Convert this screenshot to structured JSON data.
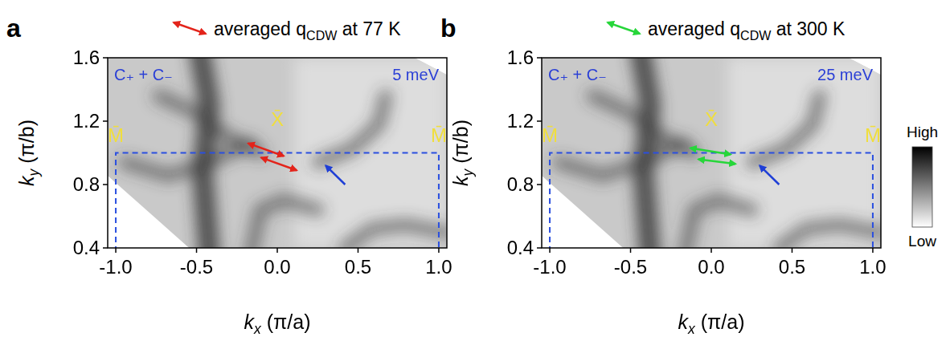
{
  "chart_data": [
    {
      "type": "image",
      "panel": "a",
      "legend": {
        "prefix": "averaged q",
        "subscript": "CDW",
        "suffix": " at 77 K",
        "color": "#e3241b"
      },
      "label_left": "C₊ + C₋",
      "label_right": "5 meV",
      "xlabel": {
        "symbol": "k",
        "subscript": "x",
        "unit": " (π/a)"
      },
      "ylabel": {
        "symbol": "k",
        "subscript": "y",
        "unit": " (π/b)"
      },
      "xlim": [
        -1.05,
        1.05
      ],
      "ylim": [
        0.4,
        1.6
      ],
      "xticks": [
        {
          "value": -1.0,
          "label": "-1.0"
        },
        -0.5,
        {
          "value": 0.0,
          "label": "0.0"
        },
        0.5,
        {
          "value": 1.0,
          "label": "1.0"
        }
      ],
      "yticks": [
        0.4,
        0.8,
        1.2,
        1.6
      ],
      "points": [
        {
          "label": "M̄",
          "x": -1.0,
          "y": 1.07
        },
        {
          "label": "X̄",
          "x": 0.0,
          "y": 1.17
        },
        {
          "label": "M̄",
          "x": 1.0,
          "y": 1.07
        }
      ],
      "zone": {
        "x": [
          -1.0,
          1.0
        ],
        "y_top": 1.0
      },
      "q_arrows": [
        {
          "from": [
            -0.18,
            1.06
          ],
          "to": [
            0.04,
            0.98
          ]
        },
        {
          "from": [
            -0.1,
            0.97
          ],
          "to": [
            0.12,
            0.89
          ]
        }
      ],
      "pointer": {
        "from": [
          0.42,
          0.8
        ],
        "to": [
          0.3,
          0.92
        ],
        "color": "#1f3fd6"
      }
    },
    {
      "type": "image",
      "panel": "b",
      "legend": {
        "prefix": "averaged q",
        "subscript": "CDW",
        "suffix": " at 300 K",
        "color": "#27d63a"
      },
      "label_left": "C₊ + C₋",
      "label_right": "25 meV",
      "xlabel": {
        "symbol": "k",
        "subscript": "x",
        "unit": " (π/a)"
      },
      "ylabel": {
        "symbol": "k",
        "subscript": "y",
        "unit": " (π/b)"
      },
      "xlim": [
        -1.05,
        1.05
      ],
      "ylim": [
        0.4,
        1.6
      ],
      "xticks": [
        {
          "value": -1.0,
          "label": "-1.0"
        },
        -0.5,
        {
          "value": 0.0,
          "label": "0.0"
        },
        0.5,
        {
          "value": 1.0,
          "label": "1.0"
        }
      ],
      "yticks": [
        0.4,
        0.8,
        1.2,
        1.6
      ],
      "points": [
        {
          "label": "M̄",
          "x": -1.0,
          "y": 1.07
        },
        {
          "label": "X̄",
          "x": 0.0,
          "y": 1.17
        },
        {
          "label": "M̄",
          "x": 1.0,
          "y": 1.07
        }
      ],
      "zone": {
        "x": [
          -1.0,
          1.0
        ],
        "y_top": 1.0
      },
      "q_arrows": [
        {
          "from": [
            -0.13,
            1.03
          ],
          "to": [
            0.12,
            0.99
          ]
        },
        {
          "from": [
            -0.08,
            0.96
          ],
          "to": [
            0.15,
            0.93
          ]
        }
      ],
      "pointer": {
        "from": [
          0.42,
          0.8
        ],
        "to": [
          0.3,
          0.92
        ],
        "color": "#1f3fd6"
      },
      "colorbar": {
        "high": "High",
        "low": "Low"
      }
    }
  ]
}
